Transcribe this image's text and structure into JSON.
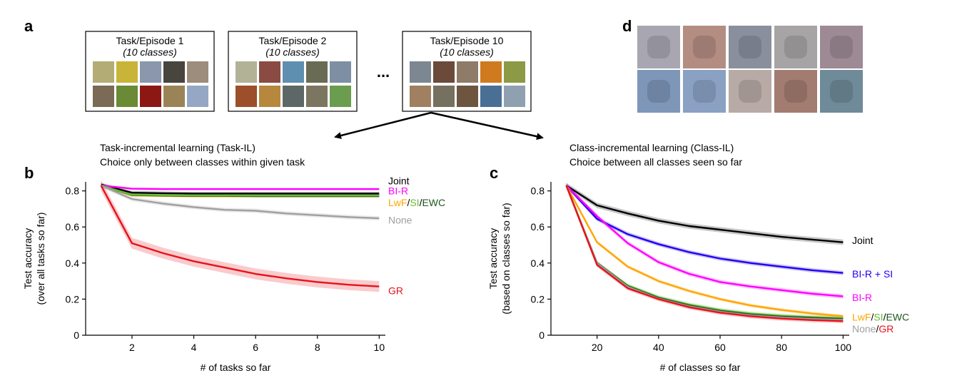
{
  "panel_letters": {
    "a": "a",
    "b": "b",
    "c": "c",
    "d": "d"
  },
  "tasks": [
    {
      "title": "Task/Episode 1",
      "subtitle": "(10 classes)"
    },
    {
      "title": "Task/Episode 2",
      "subtitle": "(10 classes)"
    },
    {
      "title": "Task/Episode 10",
      "subtitle": "(10 classes)"
    }
  ],
  "ellipsis": "...",
  "scenario_taskil": {
    "line1": "Task-incremental learning (Task-IL)",
    "line2": "Choice only between classes within given task"
  },
  "scenario_classil": {
    "line1": "Class-incremental learning (Class-IL)",
    "line2": "Choice between all classes seen so far"
  },
  "colors": {
    "joint": "#000000",
    "bir": "#ff00ff",
    "birsi": "#2200ee",
    "lwf": "#ffa500",
    "si": "#66bb33",
    "ewc": "#1e5a1e",
    "none": "#a0a0a0",
    "gr": "#e8111a"
  },
  "sample_thumbs": [
    [
      "#b3ad75",
      "#c9b43a",
      "#8a97ad",
      "#48443e",
      "#9c8d7c",
      "#7b6a55",
      "#6b8a35",
      "#8c1813",
      "#9a8457",
      "#95a7c4"
    ],
    [
      "#b2b297",
      "#8a4b43",
      "#5f8fb0",
      "#6a6b54",
      "#7e8fa3",
      "#9c4f2a",
      "#b7873e",
      "#5c6766",
      "#7c7560",
      "#6a9d4e"
    ],
    [
      "#7d8791",
      "#6b4a3a",
      "#8e7c68",
      "#d07a20",
      "#8c9a45",
      "#a08060",
      "#75705f",
      "#6e5540",
      "#4a6f94",
      "#8fa0b1"
    ]
  ],
  "generated_thumbs": [
    "#a8a6b0",
    "#b48d82",
    "#8a8f9d",
    "#a7a4a6",
    "#9e8a94",
    "#7e96b8",
    "#8aa1c4",
    "#b8aaa5",
    "#a27c70",
    "#6f8a98"
  ],
  "chart_data": [
    {
      "type": "line",
      "panel": "b",
      "xlabel": "# of tasks so far",
      "ylabel": [
        "Test accuracy",
        "(over all tasks so far)"
      ],
      "xlim": [
        0.5,
        10.2
      ],
      "ylim": [
        0,
        0.85
      ],
      "xticks": [
        2,
        4,
        6,
        8,
        10
      ],
      "yticks": [
        0,
        0.2,
        0.4,
        0.6,
        0.8
      ],
      "ytick_labels": [
        "0",
        "0.2",
        "0.4",
        "0.6",
        "0.8"
      ],
      "x": [
        1,
        2,
        3,
        4,
        5,
        6,
        7,
        8,
        9,
        10
      ],
      "series": [
        {
          "key": "joint",
          "color": "#000000",
          "values": [
            0.835,
            0.79,
            0.787,
            0.785,
            0.785,
            0.785,
            0.785,
            0.785,
            0.785,
            0.785
          ],
          "band": 0.01
        },
        {
          "key": "bir",
          "color": "#ff00ff",
          "values": [
            0.83,
            0.812,
            0.81,
            0.81,
            0.81,
            0.81,
            0.81,
            0.81,
            0.81,
            0.81
          ],
          "band": 0.006
        },
        {
          "key": "lwf",
          "color": "#ffa500",
          "values": [
            0.83,
            0.775,
            0.772,
            0.77,
            0.77,
            0.77,
            0.77,
            0.77,
            0.77,
            0.77
          ],
          "band": 0.006
        },
        {
          "key": "ewc",
          "color": "#1e5a1e",
          "values": [
            0.83,
            0.777,
            0.774,
            0.772,
            0.772,
            0.771,
            0.771,
            0.771,
            0.771,
            0.771
          ],
          "band": 0.006
        },
        {
          "key": "si",
          "color": "#66bb33",
          "values": [
            0.83,
            0.779,
            0.776,
            0.775,
            0.775,
            0.774,
            0.774,
            0.774,
            0.774,
            0.774
          ],
          "band": 0.008
        },
        {
          "key": "none",
          "color": "#a0a0a0",
          "values": [
            0.83,
            0.755,
            0.73,
            0.71,
            0.695,
            0.69,
            0.675,
            0.665,
            0.655,
            0.648
          ],
          "band": 0.012
        },
        {
          "key": "gr",
          "color": "#e8111a",
          "values": [
            0.83,
            0.51,
            0.455,
            0.41,
            0.375,
            0.34,
            0.315,
            0.295,
            0.28,
            0.27
          ],
          "band": 0.03
        }
      ],
      "labels": [
        {
          "y": 0.855,
          "parts": [
            {
              "text": "Joint",
              "color": "#000000"
            }
          ]
        },
        {
          "y": 0.8,
          "parts": [
            {
              "text": "BI-R",
              "color": "#ff00ff"
            }
          ]
        },
        {
          "y": 0.735,
          "parts": [
            {
              "text": "LwF",
              "color": "#ffa500"
            },
            {
              "text": "/",
              "color": "#000000"
            },
            {
              "text": "SI",
              "color": "#66bb33"
            },
            {
              "text": "/",
              "color": "#000000"
            },
            {
              "text": "EWC",
              "color": "#1e5a1e"
            }
          ]
        },
        {
          "y": 0.638,
          "parts": [
            {
              "text": "None",
              "color": "#a0a0a0"
            }
          ]
        },
        {
          "y": 0.248,
          "parts": [
            {
              "text": "GR",
              "color": "#e8111a"
            }
          ]
        }
      ]
    },
    {
      "type": "line",
      "panel": "c",
      "xlabel": "# of classes so far",
      "ylabel": [
        "Test accuracy",
        "(based on classes so far)"
      ],
      "xlim": [
        5,
        102
      ],
      "ylim": [
        0,
        0.85
      ],
      "xticks": [
        20,
        40,
        60,
        80,
        100
      ],
      "yticks": [
        0,
        0.2,
        0.4,
        0.6,
        0.8
      ],
      "ytick_labels": [
        "0",
        "0.2",
        "0.4",
        "0.6",
        "0.8"
      ],
      "x": [
        10,
        20,
        30,
        40,
        50,
        60,
        70,
        80,
        90,
        100
      ],
      "series": [
        {
          "key": "joint",
          "color": "#000000",
          "values": [
            0.83,
            0.72,
            0.675,
            0.635,
            0.605,
            0.585,
            0.565,
            0.545,
            0.53,
            0.515
          ],
          "band": 0.015
        },
        {
          "key": "birsi",
          "color": "#2200ee",
          "values": [
            0.83,
            0.645,
            0.56,
            0.505,
            0.46,
            0.425,
            0.4,
            0.38,
            0.36,
            0.345
          ],
          "band": 0.012
        },
        {
          "key": "bir",
          "color": "#ff00ff",
          "values": [
            0.83,
            0.66,
            0.51,
            0.405,
            0.34,
            0.295,
            0.27,
            0.25,
            0.23,
            0.215
          ],
          "band": 0.012
        },
        {
          "key": "lwf",
          "color": "#ffa500",
          "values": [
            0.83,
            0.515,
            0.38,
            0.3,
            0.245,
            0.2,
            0.165,
            0.14,
            0.12,
            0.105
          ],
          "band": 0.01
        },
        {
          "key": "si",
          "color": "#66bb33",
          "values": [
            0.83,
            0.4,
            0.275,
            0.21,
            0.17,
            0.14,
            0.12,
            0.108,
            0.1,
            0.095
          ],
          "band": 0.012
        },
        {
          "key": "ewc",
          "color": "#1e5a1e",
          "values": [
            0.83,
            0.4,
            0.272,
            0.207,
            0.165,
            0.135,
            0.115,
            0.103,
            0.096,
            0.09
          ],
          "band": 0.01
        },
        {
          "key": "none",
          "color": "#a0a0a0",
          "values": [
            0.83,
            0.398,
            0.268,
            0.203,
            0.16,
            0.13,
            0.11,
            0.098,
            0.09,
            0.085
          ],
          "band": 0.01
        },
        {
          "key": "gr",
          "color": "#e8111a",
          "values": [
            0.83,
            0.39,
            0.26,
            0.2,
            0.155,
            0.125,
            0.105,
            0.092,
            0.084,
            0.078
          ],
          "band": 0.012
        }
      ],
      "labels": [
        {
          "y": 0.525,
          "parts": [
            {
              "text": "Joint",
              "color": "#000000"
            }
          ]
        },
        {
          "y": 0.34,
          "parts": [
            {
              "text": "BI-R + SI",
              "color": "#2200ee"
            }
          ]
        },
        {
          "y": 0.21,
          "parts": [
            {
              "text": "BI-R",
              "color": "#ff00ff"
            }
          ]
        },
        {
          "y": 0.1,
          "parts": [
            {
              "text": "LwF",
              "color": "#ffa500"
            },
            {
              "text": "/",
              "color": "#000000"
            },
            {
              "text": "SI",
              "color": "#66bb33"
            },
            {
              "text": "/",
              "color": "#000000"
            },
            {
              "text": "EWC",
              "color": "#1e5a1e"
            }
          ]
        },
        {
          "y": 0.035,
          "parts": [
            {
              "text": "None",
              "color": "#a0a0a0"
            },
            {
              "text": "/",
              "color": "#000000"
            },
            {
              "text": "GR",
              "color": "#e8111a"
            }
          ]
        }
      ]
    }
  ]
}
